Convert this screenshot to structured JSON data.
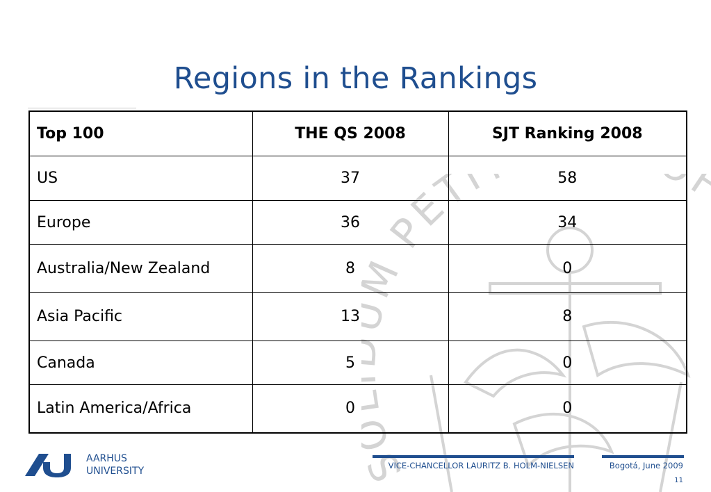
{
  "slide": {
    "title": "Regions in the Rankings"
  },
  "table": {
    "headers": [
      "Top 100",
      "THE QS 2008",
      "SJT Ranking 2008"
    ],
    "rows": [
      [
        "US",
        "37",
        "58"
      ],
      [
        "Europe",
        "36",
        "34"
      ],
      [
        "Australia/New Zealand",
        "8",
        "0"
      ],
      [
        "Asia Pacific",
        "13",
        "8"
      ],
      [
        "Canada",
        "5",
        "0"
      ],
      [
        "Latin America/Africa",
        "0",
        "0"
      ]
    ]
  },
  "watermark": {
    "text": "SOLIDUM PETIT IN PROFUNDIS · UNIVERSITAS AARHUSIENSIS",
    "color": "#d4d4d4"
  },
  "footer": {
    "university_line1": "AARHUS",
    "university_line2": "UNIVERSITY",
    "speaker": "VICE-CHANCELLOR LAURITZ B. HOLM-NIELSEN",
    "date": "Bogotá, June 2009",
    "page_number": "11",
    "brand_color": "#1f4e8f"
  }
}
